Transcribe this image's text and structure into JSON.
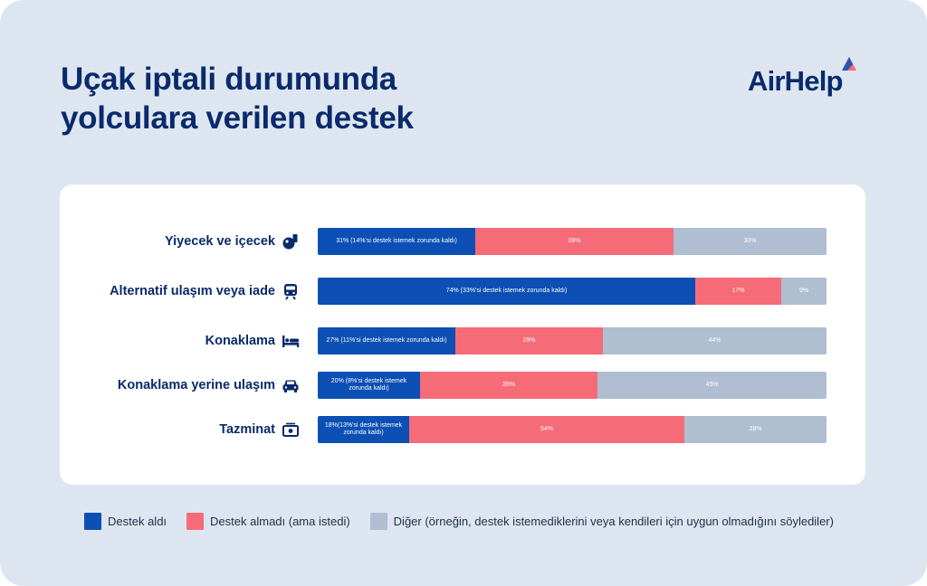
{
  "title": [
    "Uçak iptali durumunda",
    "yolculara verilen destek"
  ],
  "brand": {
    "name": "AirHelp",
    "logo_icon": "airhelp-triangle-logo-icon"
  },
  "colors": {
    "background": "#dde6f0",
    "text_dark": "#0a2a6b",
    "received": "#0c4fb5",
    "not_received": "#f66b78",
    "other": "#afbed0"
  },
  "chart_data": {
    "type": "bar",
    "orientation": "horizontal",
    "stacked": true,
    "categories": [
      "Yiyecek ve içecek",
      "Alternatif ulaşım veya iade",
      "Konaklama",
      "Konaklama yerine ulaşım",
      "Tazminat"
    ],
    "category_icons": [
      "food-drink-icon",
      "train-icon",
      "bed-icon",
      "car-icon",
      "cash-icon"
    ],
    "series": [
      {
        "name": "Destek aldı",
        "values": [
          31,
          74,
          27,
          20,
          18
        ],
        "labels": [
          "31% (14%'si destek istemek zorunda kaldı)",
          "74% (33%'si destek istemek zorunda kaldı)",
          "27% (11%'si destek istemek zorunda kaldı)",
          "20% (8%'si destek istemek zorunda kaldı)",
          "18%(13%'si destek istemek zorunda kaldı)"
        ]
      },
      {
        "name": "Destek almadı (ama istedi)",
        "values": [
          39,
          17,
          29,
          35,
          54
        ],
        "labels": [
          "39%",
          "17%",
          "29%",
          "35%",
          "54%"
        ]
      },
      {
        "name": "Diğer (örneğin, destek istemediklerini veya kendileri için uygun olmadığını söylediler)",
        "values": [
          30,
          9,
          44,
          45,
          28
        ],
        "labels": [
          "30%",
          "9%",
          "44%",
          "45%",
          "28%"
        ]
      }
    ],
    "xlim": [
      0,
      100
    ],
    "legend_position": "bottom"
  }
}
